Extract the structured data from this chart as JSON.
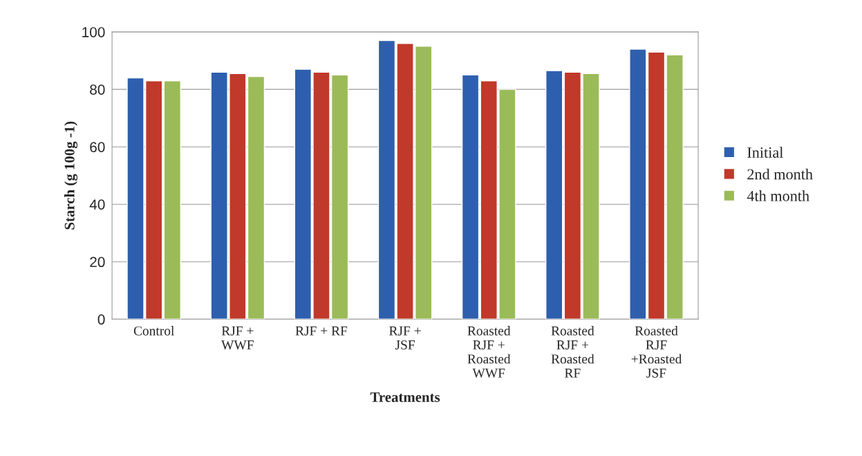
{
  "chart_data": {
    "type": "bar",
    "xlabel": "Treatments",
    "ylabel": "Starch (g 100g -1)",
    "categories": [
      "Control",
      "RJF +\nWWF",
      "RJF + RF",
      "RJF +\nJSF",
      "Roasted\nRJF +\nRoasted\nWWF",
      "Roasted\nRJF +\nRoasted\nRF",
      "Roasted\nRJF\n+Roasted\nJSF"
    ],
    "series": [
      {
        "name": "Initial",
        "color": "#2e5fae",
        "values": [
          84,
          86,
          87,
          97,
          85,
          86.5,
          94
        ]
      },
      {
        "name": "2nd month",
        "color": "#c0392b",
        "values": [
          83,
          85.5,
          86,
          96,
          83,
          86,
          93
        ]
      },
      {
        "name": "4th month",
        "color": "#9bbb59",
        "values": [
          83,
          84.5,
          85,
          95,
          80,
          85.5,
          92
        ]
      }
    ],
    "ylim": [
      0,
      100
    ],
    "yticks": [
      0,
      20,
      40,
      60,
      80,
      100
    ],
    "grid": "y",
    "legend": "right"
  }
}
